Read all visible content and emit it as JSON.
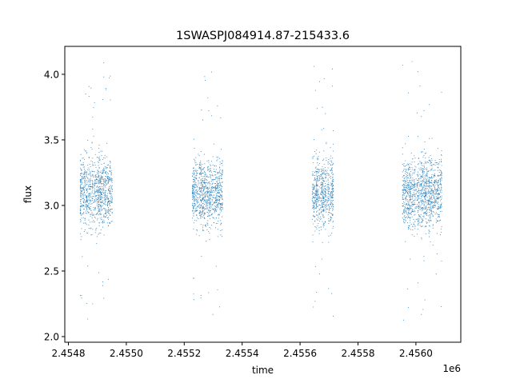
{
  "chart_data": {
    "type": "scatter",
    "title": "1SWASPJ084914.87-215433.6",
    "xlabel": "time",
    "ylabel": "flux",
    "x_offset_label": "1e6",
    "xlim": [
      2454787.6,
      2456155
    ],
    "ylim": [
      1.957,
      4.213
    ],
    "x_ticks": [
      2454800,
      2455000,
      2455200,
      2455400,
      2455600,
      2455800,
      2456000
    ],
    "x_tick_labels": [
      "2.4548",
      "2.4550",
      "2.4552",
      "2.4554",
      "2.4556",
      "2.4558",
      "2.4560"
    ],
    "y_ticks": [
      2.0,
      2.5,
      3.0,
      3.5,
      4.0
    ],
    "y_tick_labels": [
      "2.0",
      "2.5",
      "3.0",
      "3.5",
      "4.0"
    ],
    "grid": false,
    "legend": "none",
    "marker_color": "#1f77b4",
    "observing_seasons": [
      {
        "time_range": [
          2454841,
          2454952
        ],
        "flux_median": 3.1,
        "flux_core_range": [
          2.55,
          3.6
        ],
        "flux_extreme_range": [
          2.07,
          4.1
        ]
      },
      {
        "time_range": [
          2455228,
          2455333
        ],
        "flux_median": 3.1,
        "flux_core_range": [
          2.6,
          3.6
        ],
        "flux_extreme_range": [
          2.1,
          4.05
        ]
      },
      {
        "time_range": [
          2455642,
          2455717
        ],
        "flux_median": 3.1,
        "flux_core_range": [
          2.45,
          3.5
        ],
        "flux_extreme_range": [
          2.07,
          4.08
        ]
      },
      {
        "time_range": [
          2455954,
          2456091
        ],
        "flux_median": 3.1,
        "flux_core_range": [
          2.5,
          3.55
        ],
        "flux_extreme_range": [
          2.1,
          4.1
        ]
      }
    ]
  }
}
